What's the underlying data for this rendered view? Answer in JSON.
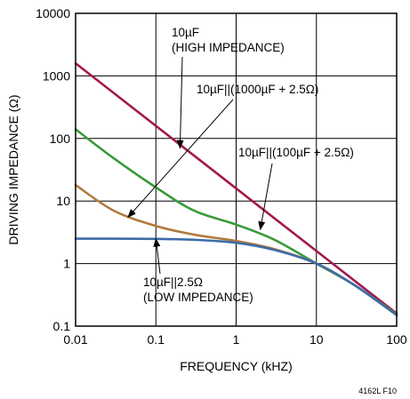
{
  "chart_data": {
    "type": "line",
    "xscale": "log",
    "yscale": "log",
    "xlim": [
      0.01,
      100
    ],
    "ylim": [
      0.1,
      10000
    ],
    "xlabel": "FREQUENCY (kHZ)",
    "ylabel": "DRIVING IMPEDANCE (Ω)",
    "xticks": [
      "0.01",
      "0.1",
      "1",
      "10",
      "100"
    ],
    "yticks": [
      "0.1",
      "1",
      "10",
      "100",
      "1000",
      "10000"
    ],
    "grid": true,
    "figure_id": "4162L F10",
    "series": [
      {
        "color": "#a3184f",
        "points": [
          [
            0.01,
            1590
          ],
          [
            100,
            0.159
          ]
        ]
      },
      {
        "color": "#3a9a3a",
        "points": [
          [
            0.01,
            140
          ],
          [
            0.03,
            48
          ],
          [
            0.1,
            16.5
          ],
          [
            0.3,
            7
          ],
          [
            1,
            4.2
          ],
          [
            3,
            2.4
          ],
          [
            10,
            1.0
          ],
          [
            30,
            0.45
          ],
          [
            100,
            0.155
          ]
        ]
      },
      {
        "color": "#b07a3c",
        "points": [
          [
            0.01,
            18
          ],
          [
            0.03,
            7
          ],
          [
            0.1,
            4.0
          ],
          [
            0.3,
            2.9
          ],
          [
            1,
            2.3
          ],
          [
            3,
            1.7
          ],
          [
            10,
            1.0
          ],
          [
            30,
            0.45
          ],
          [
            100,
            0.15
          ]
        ]
      },
      {
        "color": "#3e6ca8",
        "points": [
          [
            0.01,
            2.5
          ],
          [
            0.03,
            2.5
          ],
          [
            0.1,
            2.48
          ],
          [
            0.3,
            2.4
          ],
          [
            1,
            2.15
          ],
          [
            3,
            1.65
          ],
          [
            10,
            1.0
          ],
          [
            30,
            0.45
          ],
          [
            100,
            0.15
          ]
        ]
      }
    ],
    "annotations": [
      {
        "line1": "10µF",
        "line2": "(HIGH IMPEDANCE)",
        "arrow_to": [
          0.2,
          70
        ]
      },
      {
        "line1": "10µF||(1000µF + 2.5Ω)",
        "arrow_to": [
          0.045,
          5.5
        ]
      },
      {
        "line1": "10µF||(100µF + 2.5Ω)",
        "arrow_to": [
          2,
          3.5
        ]
      },
      {
        "line1": "10µF||2.5Ω",
        "line2": "(LOW IMPEDANCE)",
        "arrow_to": [
          0.1,
          2.5
        ]
      }
    ]
  }
}
